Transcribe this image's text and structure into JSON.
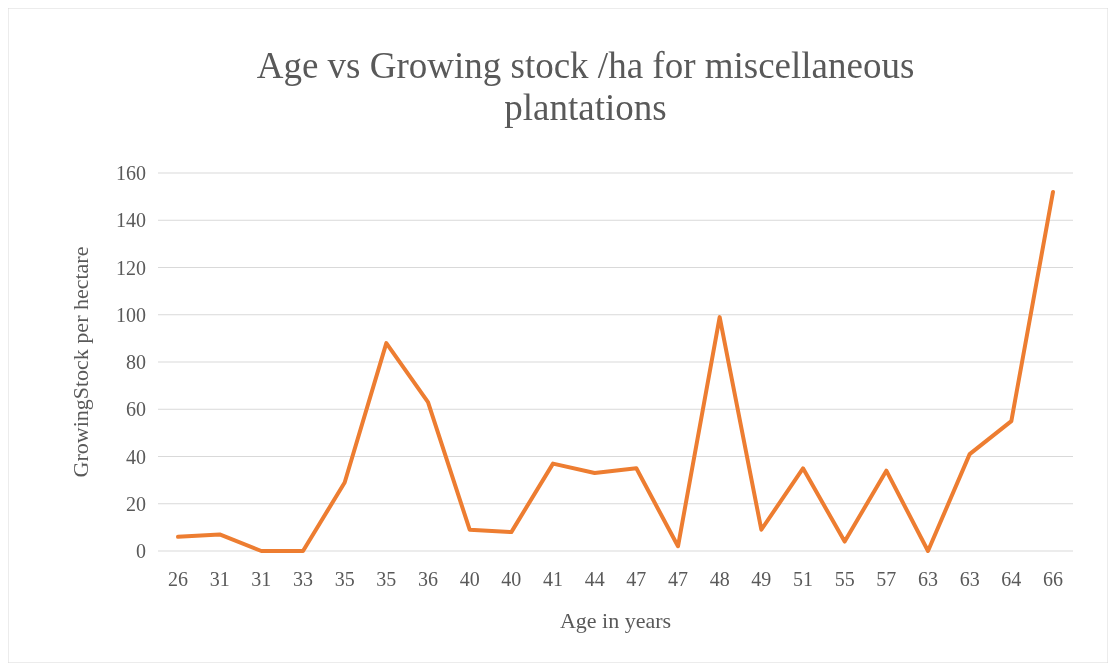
{
  "chart_data": {
    "type": "line",
    "title": "Age vs Growing stock /ha for miscellaneous plantations",
    "xlabel": "Age in years",
    "ylabel": "GrowingStock per hectare",
    "categories": [
      "26",
      "31",
      "31",
      "33",
      "35",
      "35",
      "36",
      "40",
      "40",
      "41",
      "44",
      "47",
      "47",
      "48",
      "49",
      "51",
      "55",
      "57",
      "63",
      "63",
      "64",
      "66"
    ],
    "series": [
      {
        "color": "#ed7d31",
        "values": [
          6,
          7,
          0,
          0,
          29,
          88,
          63,
          9,
          8,
          37,
          33,
          35,
          2,
          99,
          9,
          35,
          4,
          34,
          0,
          41,
          55,
          152
        ]
      }
    ],
    "ylim": [
      0,
      160
    ],
    "yticks": [
      0,
      20,
      40,
      60,
      80,
      100,
      120,
      140,
      160
    ],
    "grid": "y",
    "marker": "none",
    "line_style": "solid"
  }
}
